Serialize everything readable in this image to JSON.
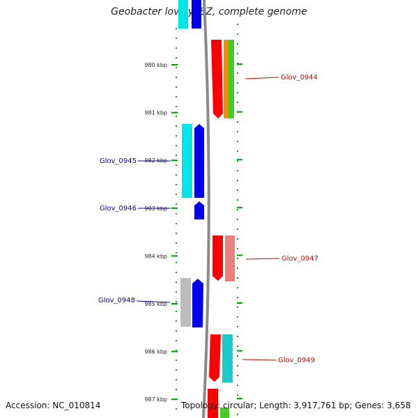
{
  "title": "Geobacter lovleyi SZ, complete genome",
  "accession": "Accession: NC_010814",
  "summary": "Topology: circular; Length: 3,917,761 bp; Genes: 3,658",
  "ruler_labels": [
    "980 kbp",
    "981 kbp",
    "982 kbp",
    "983 kbp",
    "984 kbp",
    "985 kbp",
    "986 kbp",
    "987 kbp"
  ],
  "gene_labels": {
    "right": [
      "Glov_0944",
      "Glov_0947",
      "Glov_0949"
    ],
    "left": [
      "Glov_0945",
      "Glov_0946",
      "Glov_0948"
    ]
  },
  "colors": {
    "forward": "#ff0000",
    "reverse": "#0000ee",
    "cyan": "#00e5e5",
    "teal": "#1cc9c9",
    "orange": "#ff8800",
    "green": "#44cc22",
    "salmon": "#e88080",
    "gray": "#bdbdbd",
    "backbone": "#8a8a8a",
    "tick": "#009900",
    "right_label": "#cc0000",
    "left_label": "#000099"
  }
}
